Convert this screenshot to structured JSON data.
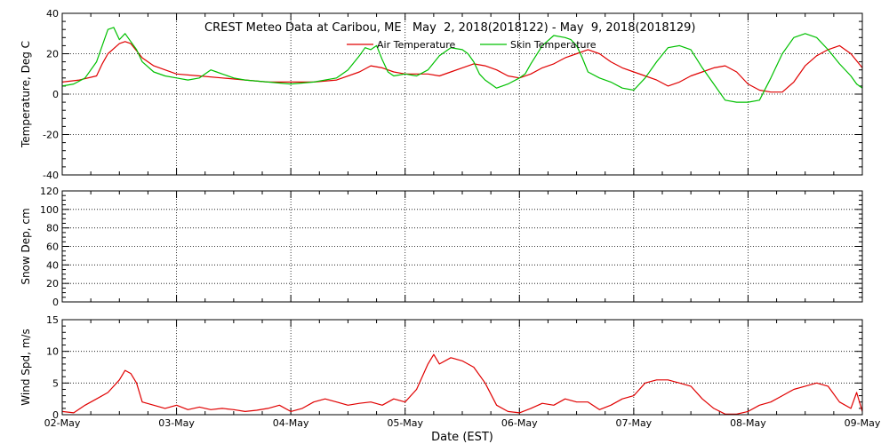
{
  "chart_data": [
    {
      "type": "line",
      "title": "CREST Meteo Data at Caribou, ME   May  2, 2018(2018122) - May  9, 2018(2018129)",
      "ylabel": "Temperature, Deg C",
      "ylim": [
        -40,
        40
      ],
      "yticks": [
        "40",
        "20",
        "0",
        "-20",
        "-40"
      ],
      "xlim": [
        0,
        7
      ],
      "grid": true,
      "legend_position": "top-center",
      "series": [
        {
          "name": "Air Temperature",
          "color": "#e00000",
          "x": [
            0,
            0.15,
            0.3,
            0.35,
            0.4,
            0.5,
            0.55,
            0.6,
            0.7,
            0.8,
            0.9,
            1.0,
            1.2,
            1.4,
            1.6,
            1.8,
            2.0,
            2.2,
            2.4,
            2.6,
            2.7,
            2.8,
            2.9,
            3.0,
            3.2,
            3.3,
            3.4,
            3.5,
            3.6,
            3.7,
            3.8,
            3.9,
            4.0,
            4.1,
            4.2,
            4.3,
            4.4,
            4.5,
            4.6,
            4.7,
            4.8,
            4.9,
            5.0,
            5.1,
            5.2,
            5.3,
            5.4,
            5.5,
            5.6,
            5.7,
            5.8,
            5.9,
            6.0,
            6.1,
            6.2,
            6.3,
            6.4,
            6.5,
            6.6,
            6.7,
            6.8,
            6.9,
            7.0
          ],
          "values": [
            6,
            7,
            9,
            15,
            20,
            25,
            26,
            25,
            18,
            14,
            12,
            10,
            9,
            8,
            7,
            6,
            6,
            6,
            7,
            11,
            14,
            13,
            11,
            10,
            10,
            9,
            11,
            13,
            15,
            14,
            12,
            9,
            8,
            10,
            13,
            15,
            18,
            20,
            22,
            20,
            16,
            13,
            11,
            9,
            7,
            4,
            6,
            9,
            11,
            13,
            14,
            11,
            5,
            2,
            1,
            1,
            6,
            14,
            19,
            22,
            24,
            20,
            13
          ]
        },
        {
          "name": "Skin Temperature",
          "color": "#00c000",
          "x": [
            0,
            0.1,
            0.2,
            0.3,
            0.35,
            0.4,
            0.45,
            0.5,
            0.55,
            0.6,
            0.65,
            0.7,
            0.8,
            0.9,
            1.0,
            1.1,
            1.2,
            1.3,
            1.35,
            1.4,
            1.5,
            1.6,
            1.8,
            2.0,
            2.2,
            2.4,
            2.5,
            2.6,
            2.65,
            2.7,
            2.75,
            2.8,
            2.85,
            2.9,
            3.0,
            3.1,
            3.2,
            3.3,
            3.4,
            3.5,
            3.55,
            3.6,
            3.65,
            3.7,
            3.8,
            3.9,
            4.0,
            4.05,
            4.1,
            4.2,
            4.3,
            4.4,
            4.45,
            4.5,
            4.55,
            4.6,
            4.7,
            4.8,
            4.9,
            5.0,
            5.1,
            5.2,
            5.3,
            5.4,
            5.5,
            5.6,
            5.7,
            5.8,
            5.9,
            6.0,
            6.1,
            6.2,
            6.3,
            6.4,
            6.5,
            6.6,
            6.7,
            6.8,
            6.9,
            6.95,
            7.0
          ],
          "values": [
            4,
            5,
            8,
            16,
            24,
            32,
            33,
            27,
            30,
            26,
            22,
            16,
            11,
            9,
            8,
            7,
            8,
            12,
            11,
            10,
            8,
            7,
            6,
            5,
            6,
            8,
            12,
            19,
            23,
            22,
            24,
            17,
            11,
            9,
            10,
            9,
            12,
            19,
            23,
            22,
            20,
            16,
            10,
            7,
            3,
            5,
            8,
            10,
            15,
            24,
            29,
            28,
            27,
            24,
            18,
            11,
            8,
            6,
            3,
            2,
            8,
            16,
            23,
            24,
            22,
            13,
            5,
            -3,
            -4,
            -4,
            -3,
            8,
            20,
            28,
            30,
            28,
            22,
            15,
            9,
            5,
            3
          ]
        }
      ]
    },
    {
      "type": "line",
      "ylabel": "Snow Dep, cm",
      "ylim": [
        0,
        120
      ],
      "yticks": [
        "120",
        "100",
        "80",
        "60",
        "40",
        "20",
        "0"
      ],
      "xlim": [
        0,
        7
      ],
      "grid": true,
      "series": []
    },
    {
      "type": "line",
      "ylabel": "Wind Spd, m/s",
      "ylim": [
        0,
        15
      ],
      "yticks": [
        "15",
        "10",
        "5",
        "0"
      ],
      "xlim": [
        0,
        7
      ],
      "xlabel": "Date (EST)",
      "xtick_labels": [
        "02-May",
        "03-May",
        "04-May",
        "05-May",
        "06-May",
        "07-May",
        "08-May",
        "09-May"
      ],
      "grid": true,
      "series": [
        {
          "color": "#e00000",
          "x": [
            0,
            0.1,
            0.2,
            0.3,
            0.4,
            0.5,
            0.55,
            0.6,
            0.65,
            0.7,
            0.8,
            0.9,
            1.0,
            1.1,
            1.2,
            1.3,
            1.4,
            1.5,
            1.6,
            1.7,
            1.8,
            1.9,
            2.0,
            2.1,
            2.2,
            2.3,
            2.4,
            2.5,
            2.6,
            2.7,
            2.8,
            2.9,
            3.0,
            3.1,
            3.2,
            3.25,
            3.3,
            3.4,
            3.5,
            3.6,
            3.7,
            3.8,
            3.9,
            4.0,
            4.1,
            4.2,
            4.3,
            4.4,
            4.5,
            4.6,
            4.7,
            4.8,
            4.9,
            5.0,
            5.1,
            5.2,
            5.3,
            5.4,
            5.5,
            5.6,
            5.7,
            5.8,
            5.9,
            6.0,
            6.1,
            6.2,
            6.3,
            6.4,
            6.5,
            6.6,
            6.7,
            6.8,
            6.9,
            6.95,
            7.0
          ],
          "values": [
            0.5,
            0.3,
            1.5,
            2.5,
            3.5,
            5.5,
            7,
            6.5,
            5,
            2,
            1.5,
            1,
            1.5,
            0.8,
            1.2,
            0.8,
            1,
            0.8,
            0.5,
            0.7,
            1,
            1.5,
            0.5,
            1,
            2,
            2.5,
            2,
            1.5,
            1.8,
            2,
            1.5,
            2.5,
            2,
            4,
            8,
            9.5,
            8,
            9,
            8.5,
            7.5,
            5,
            1.5,
            0.5,
            0.3,
            1,
            1.8,
            1.5,
            2.5,
            2,
            2,
            0.8,
            1.5,
            2.5,
            3,
            5,
            5.5,
            5.5,
            5,
            4.5,
            2.5,
            1,
            0.1,
            0.1,
            0.5,
            1.5,
            2,
            3,
            4,
            4.5,
            5,
            4.5,
            2,
            1,
            3.5,
            0.5
          ]
        }
      ]
    }
  ]
}
